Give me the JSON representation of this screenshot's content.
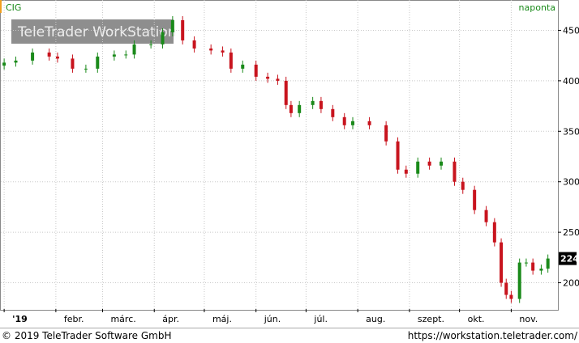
{
  "chart_data": {
    "type": "candlestick",
    "title": "CIG",
    "interval": "naponta",
    "watermark": "TeleTrader WorkStation",
    "footer_left": "© 2019 TeleTrader Software GmbH",
    "footer_right": "https://workstation.teletrader.com/",
    "x": [
      0,
      7,
      17,
      27,
      32,
      41,
      49,
      56,
      66,
      73,
      78,
      88,
      95,
      101,
      107,
      114,
      124,
      131,
      136,
      143,
      151,
      158,
      164,
      169,
      172,
      177,
      185,
      190,
      197,
      204,
      209,
      219,
      229,
      236,
      241,
      248,
      255,
      262,
      270,
      275,
      282,
      289,
      294,
      298,
      301,
      304,
      309,
      313,
      317,
      322,
      326
    ],
    "open": [
      415,
      418,
      420,
      428,
      424,
      422,
      412,
      412,
      424,
      426,
      426,
      436,
      436,
      448,
      460,
      440,
      432,
      430,
      428,
      412,
      416,
      404,
      402,
      400,
      376,
      368,
      376,
      380,
      372,
      364,
      356,
      360,
      356,
      340,
      312,
      308,
      320,
      316,
      320,
      300,
      292,
      272,
      260,
      240,
      200,
      188,
      184,
      220,
      220,
      212,
      214
    ],
    "high": [
      422,
      424,
      432,
      432,
      428,
      426,
      416,
      428,
      430,
      430,
      440,
      440,
      452,
      464,
      464,
      444,
      436,
      434,
      432,
      420,
      420,
      408,
      406,
      404,
      380,
      380,
      384,
      384,
      376,
      368,
      364,
      364,
      360,
      344,
      316,
      324,
      324,
      324,
      324,
      304,
      296,
      276,
      264,
      244,
      204,
      192,
      224,
      224,
      224,
      218,
      228
    ],
    "low": [
      411,
      414,
      416,
      420,
      418,
      408,
      408,
      408,
      420,
      422,
      422,
      432,
      432,
      444,
      436,
      428,
      426,
      424,
      408,
      408,
      400,
      398,
      396,
      372,
      364,
      364,
      372,
      368,
      360,
      352,
      352,
      352,
      336,
      308,
      304,
      304,
      312,
      312,
      296,
      288,
      268,
      256,
      236,
      196,
      184,
      180,
      180,
      216,
      208,
      208,
      210
    ],
    "close": [
      418,
      420,
      428,
      424,
      422,
      412,
      412,
      424,
      426,
      426,
      436,
      436,
      448,
      460,
      440,
      432,
      430,
      428,
      412,
      416,
      404,
      402,
      400,
      376,
      368,
      376,
      380,
      372,
      364,
      356,
      360,
      356,
      340,
      312,
      308,
      320,
      316,
      320,
      300,
      292,
      272,
      260,
      240,
      200,
      188,
      184,
      220,
      220,
      212,
      214,
      224
    ],
    "up_color": "#1a8a1a",
    "down_color": "#c8141e",
    "xlim": [
      -2,
      332
    ],
    "xticks": [
      {
        "value": 0,
        "label": "'19"
      },
      {
        "value": 31,
        "label": "febr."
      },
      {
        "value": 59,
        "label": "márc."
      },
      {
        "value": 90,
        "label": "ápr."
      },
      {
        "value": 120,
        "label": "máj."
      },
      {
        "value": 151,
        "label": "jún."
      },
      {
        "value": 181,
        "label": "júl."
      },
      {
        "value": 212,
        "label": "aug."
      },
      {
        "value": 243,
        "label": "szept."
      },
      {
        "value": 273,
        "label": "okt."
      },
      {
        "value": 304,
        "label": "nov."
      }
    ],
    "ylim": [
      174,
      480
    ],
    "yticks": [
      200,
      250,
      300,
      350,
      400,
      450
    ],
    "grid": true
  }
}
